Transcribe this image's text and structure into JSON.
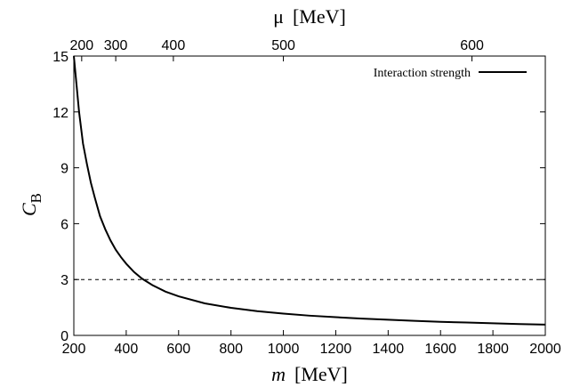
{
  "chart_data": {
    "type": "line",
    "xlabel_symbol": "m",
    "xlabel_unit": "[MeV]",
    "x2label_symbol": "μ",
    "x2label_unit": "[MeV]",
    "ylabel_symbol": "C",
    "ylabel_subscript": "B",
    "xlim": [
      200,
      2000
    ],
    "ylim": [
      0,
      15
    ],
    "xticks": [
      200,
      400,
      600,
      800,
      1000,
      1200,
      1400,
      1600,
      1800,
      2000
    ],
    "yticks": [
      0,
      3,
      6,
      9,
      12,
      15
    ],
    "x2ticks": [
      {
        "label": "200",
        "m": 230
      },
      {
        "label": "300",
        "m": 360
      },
      {
        "label": "400",
        "m": 580
      },
      {
        "label": "500",
        "m": 1000
      },
      {
        "label": "600",
        "m": 1720
      }
    ],
    "legend_position": "top-right",
    "grid": false,
    "series": [
      {
        "name": "Interaction strength",
        "style": "solid",
        "color": "#000000",
        "x": [
          200,
          210,
          220,
          235,
          250,
          265,
          280,
          300,
          320,
          340,
          360,
          380,
          400,
          430,
          460,
          500,
          550,
          600,
          700,
          800,
          900,
          1000,
          1100,
          1200,
          1300,
          1400,
          1500,
          1600,
          1700,
          1800,
          1900,
          2000
        ],
        "y": [
          15.0,
          13.5,
          12.0,
          10.3,
          9.2,
          8.2,
          7.4,
          6.4,
          5.7,
          5.1,
          4.6,
          4.2,
          3.85,
          3.4,
          3.05,
          2.7,
          2.35,
          2.1,
          1.72,
          1.48,
          1.3,
          1.17,
          1.06,
          0.98,
          0.9,
          0.84,
          0.78,
          0.73,
          0.69,
          0.65,
          0.61,
          0.58
        ]
      },
      {
        "style": "dashed",
        "color": "#000000",
        "x": [
          200,
          2000
        ],
        "y": [
          3,
          3
        ]
      }
    ]
  }
}
